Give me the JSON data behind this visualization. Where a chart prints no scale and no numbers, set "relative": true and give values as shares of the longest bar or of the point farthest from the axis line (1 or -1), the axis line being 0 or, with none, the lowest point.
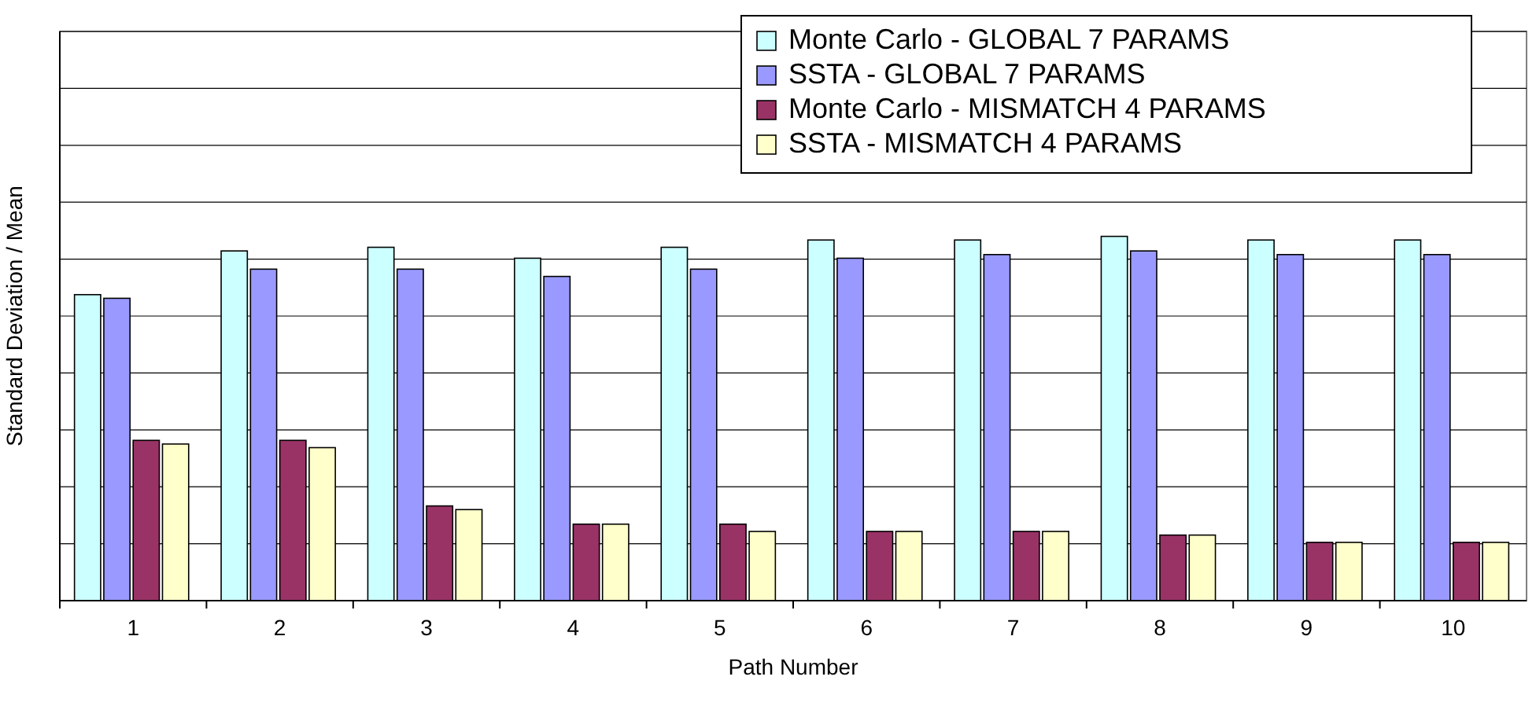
{
  "chart_data": {
    "type": "bar",
    "relative": true,
    "xlabel": "Path Number",
    "ylabel": "Standard Deviation / Mean",
    "categories": [
      "1",
      "2",
      "3",
      "4",
      "5",
      "6",
      "7",
      "8",
      "9",
      "10"
    ],
    "grid": "y",
    "legend": "top right",
    "series": [
      {
        "name": "Monte Carlo - GLOBAL 7 PARAMS",
        "color": "#ccffff",
        "values": [
          0.84,
          0.96,
          0.97,
          0.94,
          0.97,
          0.99,
          0.99,
          1,
          0.99,
          0.99
        ]
      },
      {
        "name": "SSTA - GLOBAL 7 PARAMS",
        "color": "#9999ff",
        "values": [
          0.83,
          0.91,
          0.91,
          0.89,
          0.91,
          0.94,
          0.95,
          0.96,
          0.95,
          0.95
        ]
      },
      {
        "name": "Monte Carlo - MISMATCH 4 PARAMS",
        "color": "#993366",
        "values": [
          0.44,
          0.44,
          0.26,
          0.21,
          0.21,
          0.19,
          0.19,
          0.18,
          0.16,
          0.16
        ]
      },
      {
        "name": "SSTA - MISMATCH 4 PARAMS",
        "color": "#ffffcc",
        "values": [
          0.43,
          0.42,
          0.25,
          0.21,
          0.19,
          0.19,
          0.19,
          0.18,
          0.16,
          0.16
        ]
      }
    ]
  }
}
